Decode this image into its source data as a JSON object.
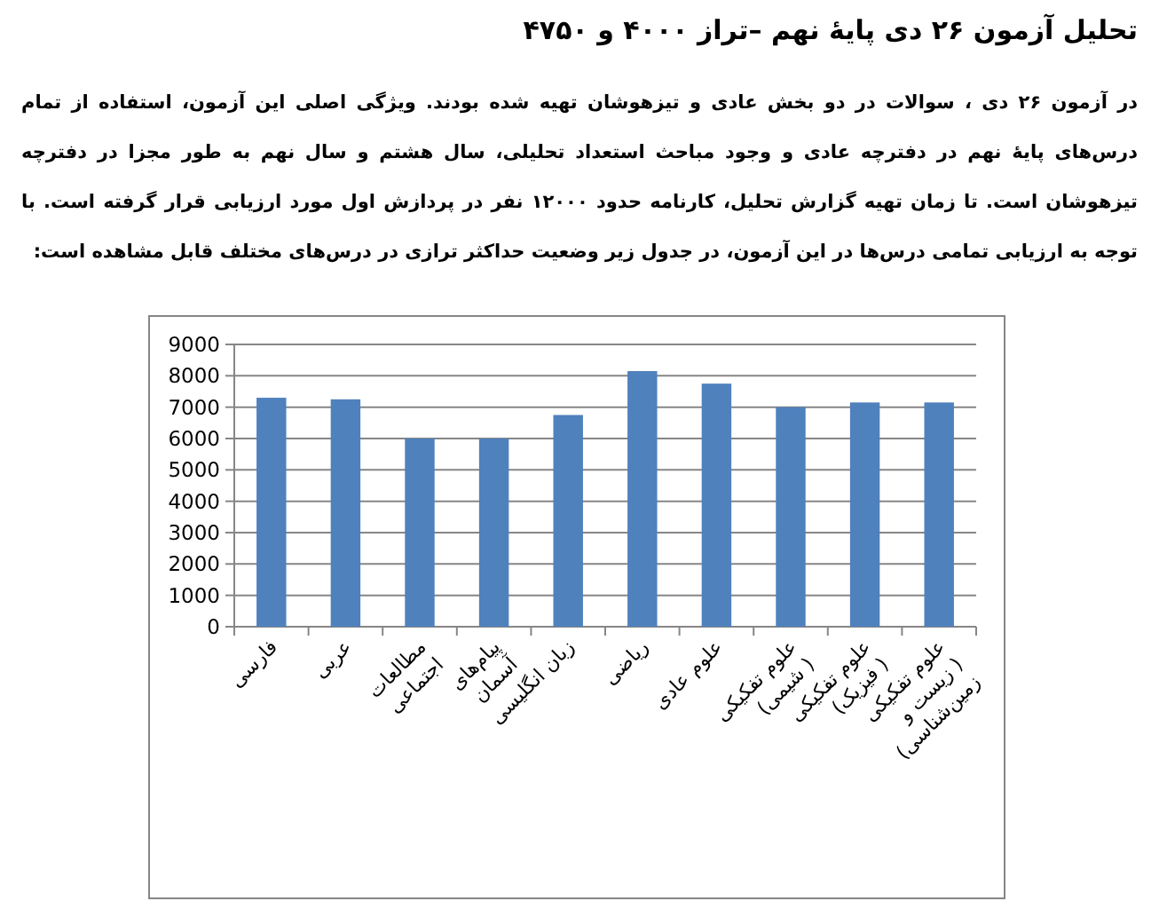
{
  "chart_data": {
    "type": "bar",
    "title": "تحلیل آزمون  ۲۶ دی پایهٔ نهم –تراز ۴۰۰۰ و ۴۷۵۰",
    "annotations": [
      "در آزمون ۲۶ دی ، سوالات در دو بخش عادی و تیزهوشان تهیه شده بودند. ویژگی اصلی این آزمون، استفاده از تمام درس‌های پایهٔ نهم در دفترچه عادی و وجود مباحث استعداد تحلیلی، سال هشتم و سال نهم به طور مجزا در دفترچه تیزهوشان است. تا زمان تهیه گزارش تحلیل، کارنامه حدود ۱۲۰۰۰ نفر در پردازش اول مورد ارزیابی قرار گرفته است. با توجه به ارزیابی تمامی درس‌ها در این آزمون، در جدول زیر وضعیت حداکثر ترازی در درس‌های مختلف قابل مشاهده است:"
    ],
    "categories": [
      "فارسی",
      "عربی",
      "مطالعات اجتماعی",
      "پیام‌های آسمان",
      "زبان انگلیسی",
      "ریاضی",
      "علوم عادی",
      "علوم تفکیکی ( شیمی)",
      "علوم تفکیکی ( فیزیک)",
      "علوم تفکیکی ( زیست و زمین‌شناسی)"
    ],
    "values": [
      7300,
      7250,
      6000,
      6000,
      6750,
      8150,
      7750,
      7000,
      7150,
      7150
    ],
    "color": "#4f81bd",
    "ylim": [
      0,
      9000
    ],
    "yticks": [
      0,
      1000,
      2000,
      3000,
      4000,
      5000,
      6000,
      7000,
      8000,
      9000
    ],
    "grid": "y"
  }
}
